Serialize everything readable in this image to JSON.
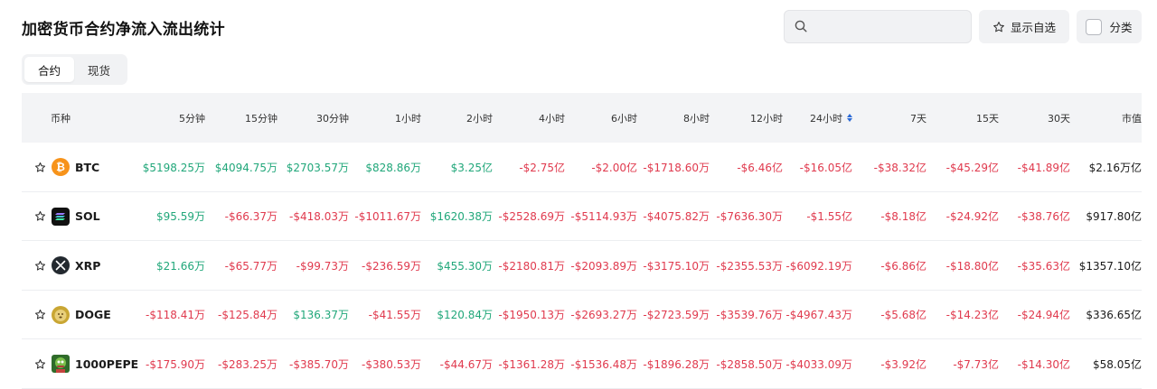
{
  "title": "加密货币合约净流入流出统计",
  "search": {
    "placeholder": "",
    "value": ""
  },
  "favorites_label": "显示自选",
  "category_label": "分类",
  "tabs": [
    {
      "label": "合约",
      "active": true
    },
    {
      "label": "现货",
      "active": false
    }
  ],
  "columns": [
    "币种",
    "5分钟",
    "15分钟",
    "30分钟",
    "1小时",
    "2小时",
    "4小时",
    "6小时",
    "8小时",
    "12小时",
    "24小时",
    "7天",
    "15天",
    "30天",
    "市值"
  ],
  "sorted_column": "24小时",
  "colors": {
    "positive": "#21a77a",
    "negative": "#e03a4e",
    "accent": "#2c6ad6"
  },
  "rows": [
    {
      "symbol": "BTC",
      "icon": "btc-icon",
      "values": [
        "$5198.25万",
        "$4094.75万",
        "$2703.57万",
        "$828.86万",
        "$3.25亿",
        "-$2.75亿",
        "-$2.00亿",
        "-$1718.60万",
        "-$6.46亿",
        "-$16.05亿",
        "-$38.32亿",
        "-$45.29亿",
        "-$41.89亿"
      ],
      "market_cap": "$2.16万亿"
    },
    {
      "symbol": "SOL",
      "icon": "sol-icon",
      "values": [
        "$95.59万",
        "-$66.37万",
        "-$418.03万",
        "-$1011.67万",
        "$1620.38万",
        "-$2528.69万",
        "-$5114.93万",
        "-$4075.82万",
        "-$7636.30万",
        "-$1.55亿",
        "-$8.18亿",
        "-$24.92亿",
        "-$38.76亿"
      ],
      "market_cap": "$917.80亿"
    },
    {
      "symbol": "XRP",
      "icon": "xrp-icon",
      "values": [
        "$21.66万",
        "-$65.77万",
        "-$99.73万",
        "-$236.59万",
        "$455.30万",
        "-$2180.81万",
        "-$2093.89万",
        "-$3175.10万",
        "-$2355.53万",
        "-$6092.19万",
        "-$6.86亿",
        "-$18.80亿",
        "-$35.63亿"
      ],
      "market_cap": "$1357.10亿"
    },
    {
      "symbol": "DOGE",
      "icon": "doge-icon",
      "values": [
        "-$118.41万",
        "-$125.84万",
        "$136.37万",
        "-$41.55万",
        "$120.84万",
        "-$1950.13万",
        "-$2693.27万",
        "-$2723.59万",
        "-$3539.76万",
        "-$4967.43万",
        "-$5.68亿",
        "-$14.23亿",
        "-$24.94亿"
      ],
      "market_cap": "$336.65亿"
    },
    {
      "symbol": "1000PEPE",
      "icon": "pepe-icon",
      "values": [
        "-$175.90万",
        "-$283.25万",
        "-$385.70万",
        "-$380.53万",
        "-$44.67万",
        "-$1361.28万",
        "-$1536.48万",
        "-$1896.28万",
        "-$2858.50万",
        "-$4033.09万",
        "-$3.92亿",
        "-$7.73亿",
        "-$14.30亿"
      ],
      "market_cap": "$58.05亿"
    }
  ]
}
